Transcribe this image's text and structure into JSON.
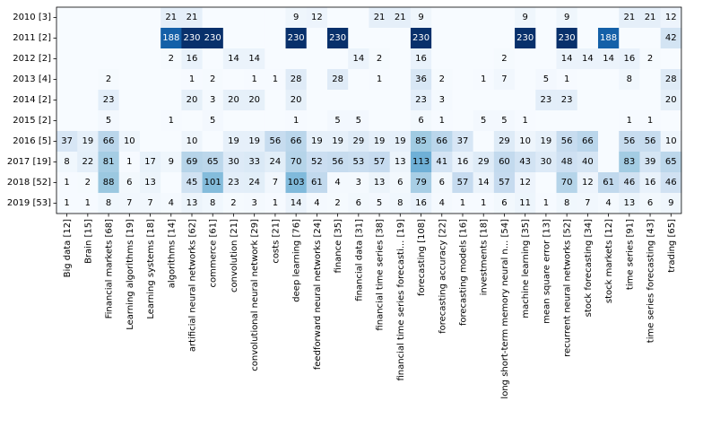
{
  "chart_data": {
    "type": "heatmap",
    "title": "",
    "xlabel": "",
    "ylabel": "",
    "colormap": "Blues",
    "value_range": [
      0,
      230
    ],
    "rows": [
      "2010 [3]",
      "2011 [2]",
      "2012 [2]",
      "2013 [4]",
      "2014 [2]",
      "2015 [2]",
      "2016 [5]",
      "2017 [19]",
      "2018 [52]",
      "2019 [53]"
    ],
    "columns": [
      "Big data [12]",
      "Brain [15]",
      "Financial markets [68]",
      "Learning algorithms [19]",
      "Learning systems [18]",
      "algorithms [14]",
      "artificial neural networks [62]",
      "commerce [61]",
      "convolution [21]",
      "convolutional neural network [29]",
      "costs [21]",
      "deep learning [76]",
      "feedforward neural networks [24]",
      "finance [35]",
      "financial data [31]",
      "financial time series [38]",
      "financial time series forecasti... [19]",
      "forecasting [108]",
      "forecasting accuracy [22]",
      "forecasting models [16]",
      "investments [18]",
      "long short-term memory neural n... [54]",
      "machine learning [35]",
      "mean square error [13]",
      "recurrent neural networks [52]",
      "stock forecasting [34]",
      "stock markets [12]",
      "time series [91]",
      "time series forecasting [43]",
      "trading [65]"
    ],
    "values": [
      [
        null,
        null,
        null,
        null,
        null,
        21,
        21,
        null,
        null,
        null,
        null,
        9,
        12,
        null,
        null,
        21,
        21,
        9,
        null,
        null,
        null,
        null,
        9,
        null,
        9,
        null,
        null,
        21,
        21,
        12
      ],
      [
        null,
        null,
        null,
        null,
        null,
        188,
        230,
        230,
        null,
        null,
        null,
        230,
        null,
        230,
        null,
        null,
        null,
        230,
        null,
        null,
        null,
        null,
        230,
        null,
        230,
        null,
        188,
        null,
        null,
        42
      ],
      [
        null,
        null,
        null,
        null,
        null,
        2,
        16,
        null,
        14,
        14,
        null,
        null,
        null,
        null,
        14,
        2,
        null,
        16,
        null,
        null,
        null,
        2,
        null,
        null,
        14,
        14,
        14,
        16,
        2,
        null
      ],
      [
        null,
        null,
        2,
        null,
        null,
        null,
        1,
        2,
        null,
        1,
        1,
        28,
        null,
        28,
        null,
        1,
        null,
        36,
        2,
        null,
        1,
        7,
        null,
        5,
        1,
        null,
        null,
        8,
        null,
        28
      ],
      [
        null,
        null,
        23,
        null,
        null,
        null,
        20,
        3,
        20,
        20,
        null,
        20,
        null,
        null,
        null,
        null,
        null,
        23,
        3,
        null,
        null,
        null,
        null,
        23,
        23,
        null,
        null,
        null,
        null,
        20
      ],
      [
        null,
        null,
        5,
        null,
        null,
        1,
        null,
        5,
        null,
        null,
        null,
        1,
        null,
        5,
        5,
        null,
        null,
        6,
        1,
        null,
        5,
        5,
        1,
        null,
        null,
        null,
        null,
        1,
        1,
        null
      ],
      [
        37,
        19,
        66,
        10,
        null,
        null,
        10,
        null,
        19,
        19,
        56,
        66,
        19,
        19,
        29,
        19,
        19,
        85,
        66,
        37,
        null,
        29,
        10,
        19,
        56,
        66,
        null,
        56,
        56,
        10
      ],
      [
        8,
        22,
        81,
        1,
        17,
        9,
        69,
        65,
        30,
        33,
        24,
        70,
        52,
        56,
        53,
        57,
        13,
        113,
        41,
        16,
        29,
        60,
        43,
        30,
        48,
        40,
        null,
        83,
        39,
        65
      ],
      [
        1,
        2,
        88,
        6,
        13,
        null,
        45,
        101,
        23,
        24,
        7,
        103,
        61,
        4,
        3,
        13,
        6,
        79,
        6,
        57,
        14,
        57,
        12,
        null,
        70,
        12,
        61,
        46,
        16,
        46
      ],
      [
        1,
        1,
        8,
        7,
        7,
        4,
        13,
        8,
        2,
        3,
        1,
        14,
        4,
        2,
        6,
        5,
        8,
        16,
        4,
        1,
        1,
        6,
        11,
        1,
        8,
        7,
        4,
        13,
        6,
        9
      ]
    ]
  }
}
